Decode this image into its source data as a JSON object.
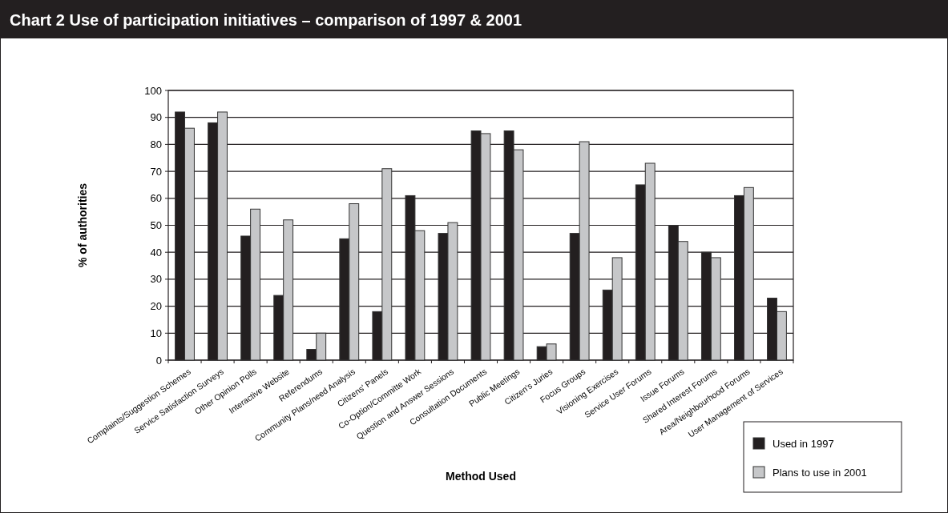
{
  "chart_data": {
    "type": "bar",
    "title": "Chart 2 Use of participation initiatives – comparison of 1997 & 2001",
    "xlabel": "Method Used",
    "ylabel": "% of authorities",
    "categories": [
      "Complaints/Suggestion Schemes",
      "Service Satisfaction Surveys",
      "Other Opinion Polls",
      "Interactive Website",
      "Referendums",
      "Community Plans/need Analysis",
      "Citizens' Panels",
      "Co-Option/Committe Work",
      "Question and Answer Sessions",
      "Consultation Documents",
      "Public Meetings",
      "Citizen's Juries",
      "Focus Groups",
      "Visioning Exercises",
      "Service User Forums",
      "Issue Forums",
      "Shared Interest Forums",
      "Area/Neighbourhood Forums",
      "User Management of Services"
    ],
    "series": [
      {
        "name": "Used in 1997",
        "color": "#231f20",
        "values": [
          92,
          88,
          46,
          24,
          4,
          45,
          18,
          61,
          47,
          85,
          85,
          5,
          47,
          26,
          65,
          50,
          40,
          61,
          23
        ]
      },
      {
        "name": "Plans to use in 2001",
        "color": "#c6c7c9",
        "values": [
          86,
          92,
          56,
          52,
          10,
          58,
          71,
          48,
          51,
          84,
          78,
          6,
          81,
          38,
          73,
          44,
          38,
          64,
          18
        ]
      }
    ],
    "ylim": [
      0,
      100
    ],
    "yticks": [
      0,
      10,
      20,
      30,
      40,
      50,
      60,
      70,
      80,
      90,
      100
    ],
    "grid": "y",
    "legend": "bottom right"
  }
}
